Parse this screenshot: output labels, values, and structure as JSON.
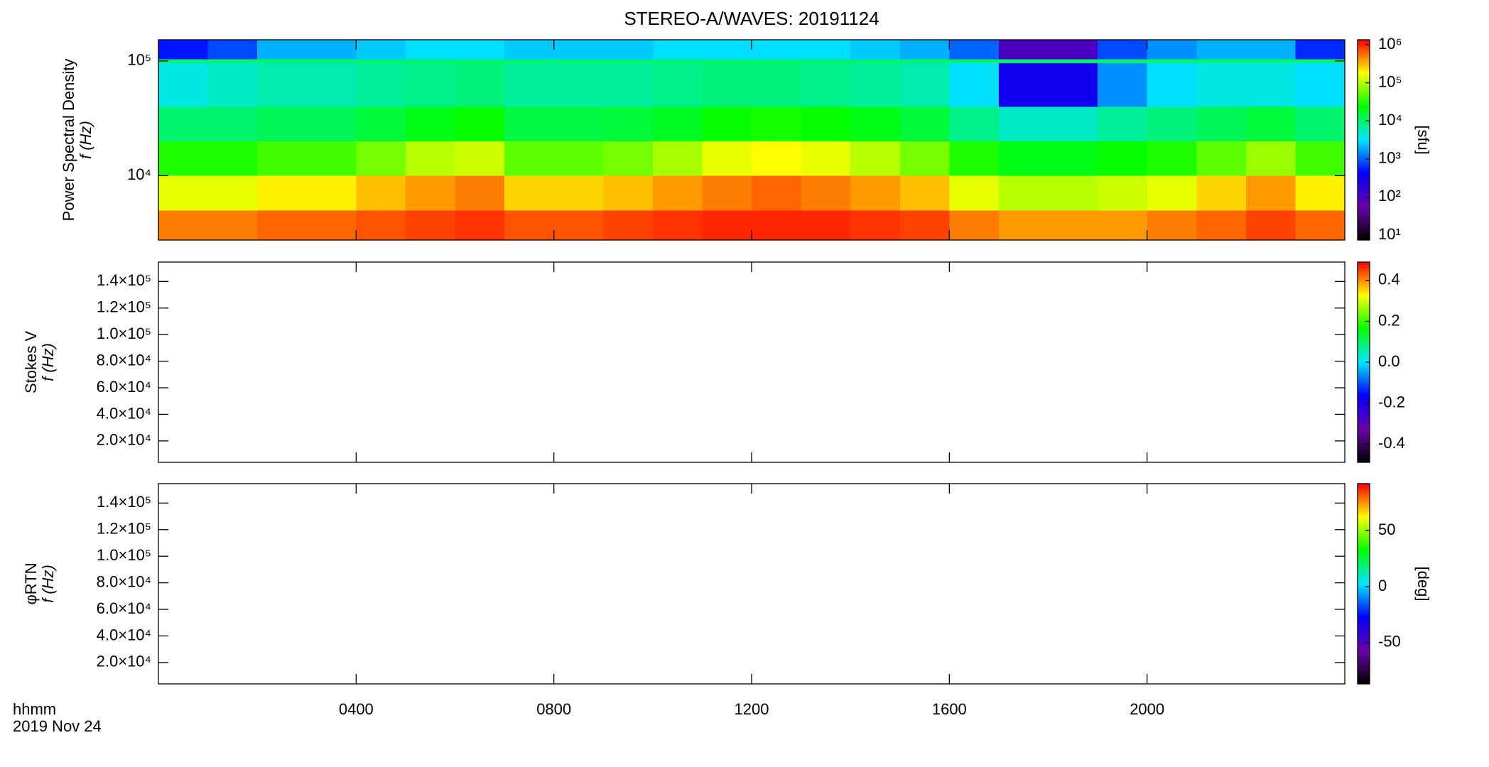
{
  "chart_data": [
    {
      "type": "heatmap",
      "title": "STEREO-A/WAVES: 20191124",
      "ylabel": [
        "Power Spectral Density",
        "f (Hz)"
      ],
      "ylog": true,
      "ylim": [
        2750,
        153000
      ],
      "yticks": [
        {
          "value": 10000,
          "label": "10⁴"
        },
        {
          "value": 100000,
          "label": "10⁵"
        }
      ],
      "x_edges": [
        0,
        1,
        2,
        3,
        4,
        5,
        6,
        7,
        8,
        9,
        10,
        11,
        12,
        13,
        14,
        15,
        16,
        17,
        18,
        19,
        20,
        21,
        22,
        23,
        24
      ],
      "y_edges": [
        2750,
        5000,
        10000,
        20000,
        40000,
        96000,
        104000,
        153000
      ],
      "values": [
        [
          500000,
          500000,
          600000,
          600000,
          700000,
          800000,
          900000,
          700000,
          700000,
          800000,
          900000,
          1000000,
          1000000,
          1000000,
          900000,
          800000,
          500000,
          400000,
          400000,
          400000,
          500000,
          600000,
          800000,
          600000
        ],
        [
          150000,
          150000,
          200000,
          200000,
          300000,
          400000,
          500000,
          250000,
          250000,
          300000,
          400000,
          500000,
          600000,
          500000,
          400000,
          300000,
          150000,
          100000,
          100000,
          120000,
          150000,
          250000,
          400000,
          200000
        ],
        [
          30000,
          30000,
          40000,
          40000,
          60000,
          100000,
          120000,
          50000,
          50000,
          60000,
          90000,
          150000,
          180000,
          150000,
          100000,
          60000,
          30000,
          20000,
          20000,
          25000,
          30000,
          50000,
          80000,
          40000
        ],
        [
          10000,
          10000,
          12000,
          12000,
          15000,
          20000,
          25000,
          14000,
          14000,
          15000,
          18000,
          25000,
          28000,
          25000,
          20000,
          15000,
          8000,
          5000,
          5000,
          7000,
          9000,
          12000,
          15000,
          10000
        ],
        [
          4000,
          5000,
          6000,
          6000,
          7000,
          8000,
          9000,
          7000,
          7000,
          7000,
          8000,
          9000,
          9000,
          8000,
          7000,
          6000,
          3000,
          300,
          300,
          1500,
          3000,
          4000,
          4000,
          3000
        ],
        [
          10000,
          10000,
          10000,
          10000,
          10000,
          10000,
          10000,
          10000,
          10000,
          10000,
          10000,
          10000,
          10000,
          10000,
          10000,
          10000,
          10000,
          10000,
          10000,
          10000,
          10000,
          10000,
          10000,
          10000
        ],
        [
          500,
          800,
          2000,
          2000,
          2500,
          3000,
          3000,
          2500,
          2500,
          2500,
          3000,
          3000,
          3000,
          3000,
          2500,
          2000,
          1000,
          100,
          100,
          800,
          1500,
          2000,
          2000,
          600
        ]
      ],
      "zlog": true,
      "zlim": [
        7.4,
        1350000
      ],
      "zticks": [
        {
          "value": 10,
          "label": "10¹"
        },
        {
          "value": 100,
          "label": "10²"
        },
        {
          "value": 1000,
          "label": "10³"
        },
        {
          "value": 10000,
          "label": "10⁴"
        },
        {
          "value": 100000,
          "label": "10⁵"
        },
        {
          "value": 1000000,
          "label": "10⁶"
        }
      ],
      "zlabel": "[sfu]",
      "colormap": [
        "#000000",
        "#6a00a8",
        "#0000ff",
        "#00e5ff",
        "#00ff00",
        "#ffff00",
        "#ff0000"
      ]
    },
    {
      "type": "heatmap",
      "ylabel": [
        "Stokes V",
        "f (Hz)"
      ],
      "ylog": false,
      "ylim": [
        3900,
        154600
      ],
      "yticks": [
        {
          "value": 20000,
          "label": "2.0×10⁴"
        },
        {
          "value": 40000,
          "label": "4.0×10⁴"
        },
        {
          "value": 60000,
          "label": "6.0×10⁴"
        },
        {
          "value": 80000,
          "label": "8.0×10⁴"
        },
        {
          "value": 100000,
          "label": "1.0×10⁵"
        },
        {
          "value": 120000,
          "label": "1.2×10⁵"
        },
        {
          "value": 140000,
          "label": "1.4×10⁵"
        }
      ],
      "zlog": false,
      "zlim": [
        -0.49,
        0.49
      ],
      "zticks": [
        -0.4,
        -0.2,
        {
          "value": 0,
          "label": "0.0"
        },
        0.2,
        0.4
      ],
      "colormap": [
        "#000000",
        "#6a00a8",
        "#0000ff",
        "#00e5ff",
        "#00ff00",
        "#ffff00",
        "#ff0000"
      ]
    },
    {
      "type": "heatmap",
      "ylabel": [
        "φRTN",
        "f (Hz)"
      ],
      "ylog": false,
      "ylim": [
        3900,
        154600
      ],
      "yticks": [
        {
          "value": 20000,
          "label": "2.0×10⁴"
        },
        {
          "value": 40000,
          "label": "4.0×10⁴"
        },
        {
          "value": 60000,
          "label": "6.0×10⁴"
        },
        {
          "value": 80000,
          "label": "8.0×10⁴"
        },
        {
          "value": 100000,
          "label": "1.0×10⁵"
        },
        {
          "value": 120000,
          "label": "1.2×10⁵"
        },
        {
          "value": 140000,
          "label": "1.4×10⁵"
        }
      ],
      "zlog": false,
      "zlim": [
        -87,
        92
      ],
      "zticks": [
        -50,
        0,
        50
      ],
      "zlabel": "[deg]",
      "colormap": [
        "#000000",
        "#6a00a8",
        "#0000ff",
        "#00e5ff",
        "#00ff00",
        "#ffff00",
        "#ff0000"
      ],
      "xlim": [
        0,
        24
      ],
      "xticks": [
        {
          "value": 4,
          "label": "0400"
        },
        {
          "value": 8,
          "label": "0800"
        },
        {
          "value": 12,
          "label": "1200"
        },
        {
          "value": 16,
          "label": "1600"
        },
        {
          "value": 20,
          "label": "2000"
        }
      ],
      "xlabel": [
        "hhmm",
        "2019 Nov 24"
      ]
    }
  ]
}
